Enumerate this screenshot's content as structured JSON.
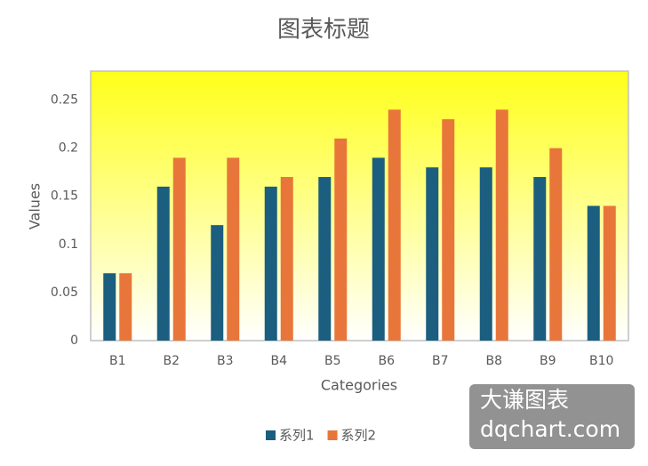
{
  "chart_data": {
    "type": "bar",
    "title": "图表标题",
    "x_label": "Categories",
    "y_label": "Values",
    "categories": [
      "B1",
      "B2",
      "B3",
      "B4",
      "B5",
      "B6",
      "B7",
      "B8",
      "B9",
      "B10"
    ],
    "series": [
      {
        "name": "系列1",
        "color": "#1b5e7f",
        "values": [
          0.07,
          0.16,
          0.12,
          0.16,
          0.17,
          0.19,
          0.18,
          0.18,
          0.17,
          0.14
        ]
      },
      {
        "name": "系列2",
        "color": "#e8763a",
        "values": [
          0.07,
          0.19,
          0.19,
          0.17,
          0.21,
          0.24,
          0.23,
          0.24,
          0.2,
          0.14
        ]
      }
    ],
    "ylim": [
      0,
      0.28
    ],
    "yticks": [
      0,
      0.05,
      0.1,
      0.15,
      0.2,
      0.25
    ],
    "grid": false,
    "legend": "bottom",
    "watermark": [
      "大谦图表",
      "dqchart.com"
    ]
  }
}
